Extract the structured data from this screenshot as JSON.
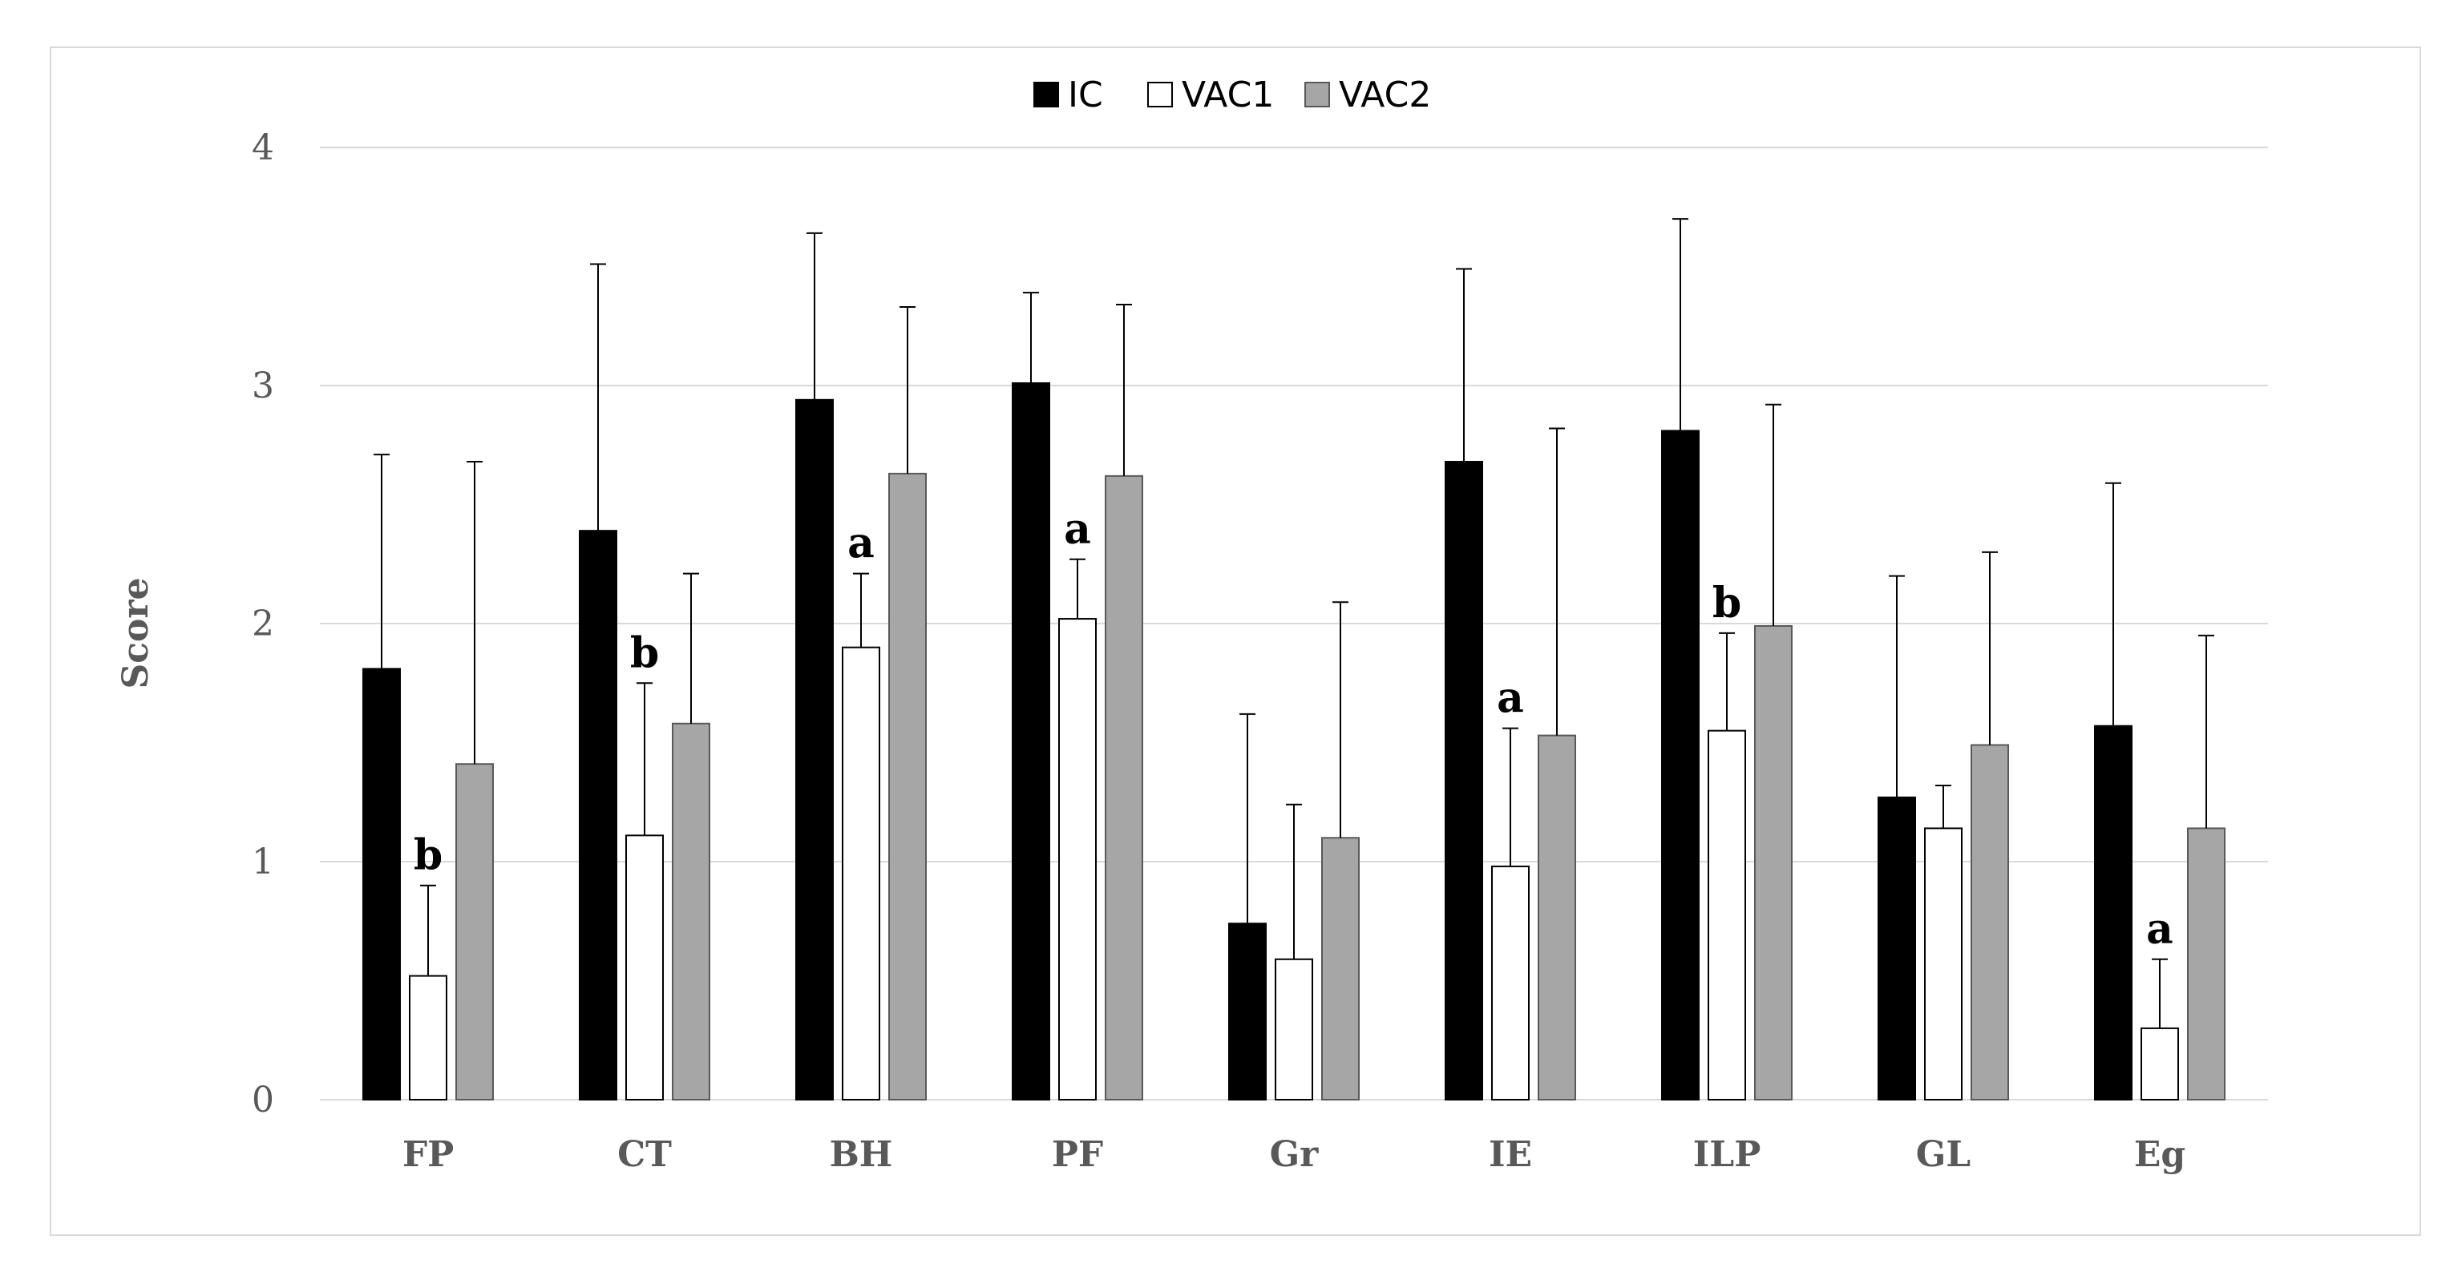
{
  "chart_data": {
    "type": "bar",
    "title": "",
    "xlabel": "",
    "ylabel": "Score",
    "ylim": [
      0,
      4
    ],
    "yticks": [
      0,
      1,
      2,
      3,
      4
    ],
    "grid": true,
    "legend_position": "top-center",
    "categories": [
      "FP",
      "CT",
      "BH",
      "PF",
      "Gr",
      "IE",
      "ILP",
      "GL",
      "Eg"
    ],
    "series": [
      {
        "name": "IC",
        "color": "#000000",
        "edge": "#000000",
        "values": [
          1.81,
          2.39,
          2.94,
          3.01,
          0.74,
          2.68,
          2.81,
          1.27,
          1.57
        ],
        "errors": [
          0.9,
          1.12,
          0.7,
          0.38,
          0.88,
          0.81,
          0.89,
          0.93,
          1.02
        ]
      },
      {
        "name": "VAC1",
        "color": "#ffffff",
        "edge": "#000000",
        "values": [
          0.52,
          1.11,
          1.9,
          2.02,
          0.59,
          0.98,
          1.55,
          1.14,
          0.3
        ],
        "errors": [
          0.38,
          0.64,
          0.31,
          0.25,
          0.65,
          0.58,
          0.41,
          0.18,
          0.29
        ]
      },
      {
        "name": "VAC2",
        "color": "#a6a6a6",
        "edge": "#595959",
        "values": [
          1.41,
          1.58,
          2.63,
          2.62,
          1.1,
          1.53,
          1.99,
          1.49,
          1.14
        ],
        "errors": [
          1.27,
          0.63,
          0.7,
          0.72,
          0.99,
          1.29,
          0.93,
          0.81,
          0.81
        ]
      }
    ],
    "annotations": [
      {
        "category": "FP",
        "series": "VAC1",
        "text": "b"
      },
      {
        "category": "CT",
        "series": "VAC1",
        "text": "b"
      },
      {
        "category": "BH",
        "series": "VAC1",
        "text": "a"
      },
      {
        "category": "PF",
        "series": "VAC1",
        "text": "a"
      },
      {
        "category": "IE",
        "series": "VAC1",
        "text": "a"
      },
      {
        "category": "ILP",
        "series": "VAC1",
        "text": "b"
      },
      {
        "category": "Eg",
        "series": "VAC1",
        "text": "a"
      }
    ]
  }
}
